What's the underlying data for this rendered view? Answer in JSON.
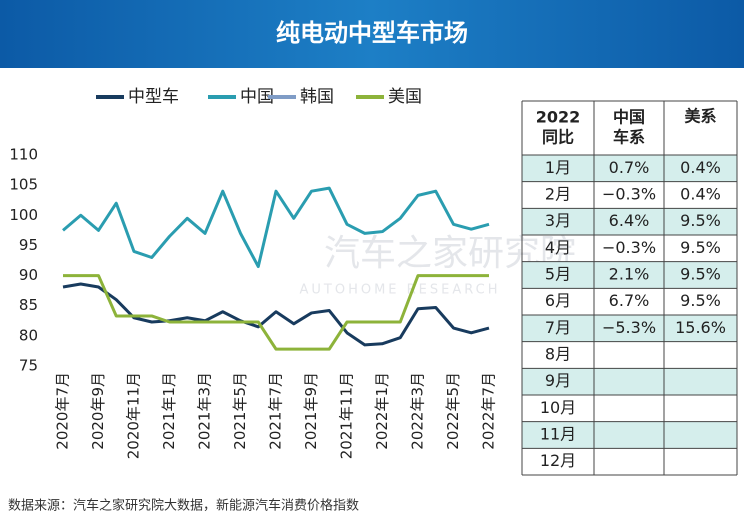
{
  "chart_data": {
    "type": "line",
    "title": "纯电动中型车市场",
    "categories": [
      "2020年7月",
      null,
      "2020年9月",
      null,
      "2020年11月",
      null,
      "2021年1月",
      null,
      "2021年3月",
      null,
      "2021年5月",
      null,
      "2021年7月",
      null,
      "2021年9月",
      null,
      "2021年11月",
      null,
      "2022年1月",
      null,
      "2022年3月",
      null,
      "2022年5月",
      null,
      "2022年7月"
    ],
    "series": [
      {
        "name": "中型车",
        "color": "#183b5e",
        "values": [
          88.1,
          88.6,
          88.1,
          86,
          83,
          82.3,
          82.5,
          83,
          82.5,
          84,
          82.5,
          81.5,
          84,
          82,
          83.8,
          84.2,
          80.5,
          78.5,
          78.7,
          79.7,
          84.5,
          84.7,
          81.3,
          80.5,
          81.3
        ]
      },
      {
        "name": "中国",
        "color": "#2a9db0",
        "values": [
          97.5,
          100,
          97.5,
          102,
          94,
          93,
          96.5,
          99.5,
          97,
          104,
          97,
          91.5,
          104,
          99.5,
          104,
          104.5,
          98.5,
          97,
          97.3,
          99.5,
          103.3,
          104,
          98.5,
          97.7,
          98.5
        ]
      },
      {
        "name": "韩国",
        "color": "#7f9cc6",
        "values": [
          null,
          null,
          null,
          null,
          null,
          null,
          null,
          null,
          null,
          null,
          null,
          null,
          null,
          null,
          null,
          null,
          null,
          null,
          null,
          null,
          null,
          null,
          null,
          null,
          null
        ]
      },
      {
        "name": "美国",
        "color": "#8db33a",
        "values": [
          90,
          90,
          90,
          83.3,
          83.3,
          83.3,
          82.3,
          82.3,
          82.3,
          82.3,
          82.3,
          82.3,
          77.8,
          77.8,
          77.8,
          77.8,
          82.3,
          82.3,
          82.3,
          82.3,
          90,
          90,
          90,
          90,
          90
        ]
      }
    ],
    "ylim": [
      75,
      110
    ],
    "yticks": [
      75,
      80,
      85,
      90,
      95,
      100,
      105,
      110
    ],
    "grid": false,
    "legend": "top"
  },
  "watermark": {
    "name": "汽车之家研究院",
    "subtitle": "AUTOHOME RESEARCH"
  },
  "table": {
    "header": [
      [
        "2022",
        "同比"
      ],
      [
        "中国",
        "车系"
      ],
      [
        "美系"
      ]
    ],
    "rows": [
      [
        "1月",
        "0.7%",
        "0.4%"
      ],
      [
        "2月",
        "−0.3%",
        "0.4%"
      ],
      [
        "3月",
        "6.4%",
        "9.5%"
      ],
      [
        "4月",
        "−0.3%",
        "9.5%"
      ],
      [
        "5月",
        "2.1%",
        "9.5%"
      ],
      [
        "6月",
        "6.7%",
        "9.5%"
      ],
      [
        "7月",
        "−5.3%",
        "15.6%"
      ],
      [
        "8月"
      ],
      [
        "9月"
      ],
      [
        "10月"
      ],
      [
        "11月"
      ],
      [
        "12月"
      ]
    ]
  },
  "source": "数据来源：汽车之家研究院大数据，新能源汽车消费价格指数"
}
